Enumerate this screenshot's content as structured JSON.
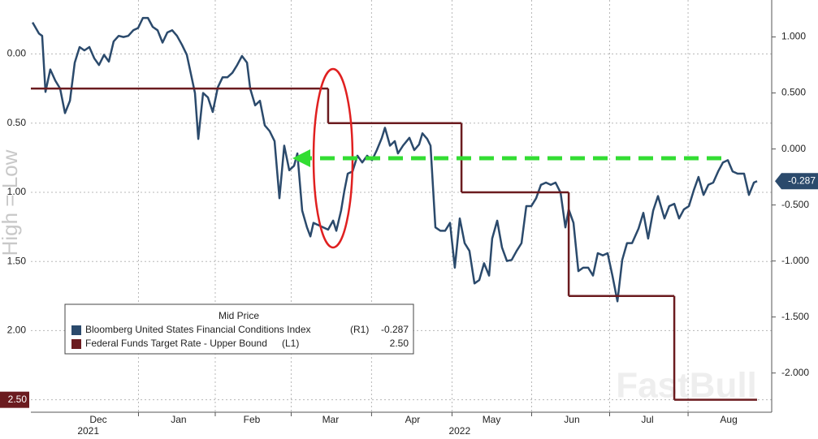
{
  "chart_data": {
    "type": "line",
    "side_label": "High = Low",
    "watermark": "FastBull",
    "legend_title": "Mid Price",
    "xlim": [
      0,
      40
    ],
    "xticks": [
      {
        "value": 3.64,
        "label": "Dec"
      },
      {
        "value": 7.98,
        "label": "Jan"
      },
      {
        "value": 11.93,
        "label": "Feb"
      },
      {
        "value": 16.18,
        "label": "Mar"
      },
      {
        "value": 20.61,
        "label": "Apr"
      },
      {
        "value": 24.87,
        "label": "May"
      },
      {
        "value": 29.21,
        "label": "Jun"
      },
      {
        "value": 33.29,
        "label": "Jul"
      },
      {
        "value": 37.68,
        "label": "Aug"
      }
    ],
    "x_year_labels": [
      {
        "value": 3.1,
        "label": "2021"
      },
      {
        "value": 23.15,
        "label": "2022"
      }
    ],
    "ylim": [
      -0.39,
      2.59
    ],
    "y_inverted": true,
    "yticks": [
      {
        "value": 0,
        "label": "0.00"
      },
      {
        "value": 0.5,
        "label": "0.50"
      },
      {
        "value": 1,
        "label": "1.00"
      },
      {
        "value": 1.5,
        "label": "1.50"
      },
      {
        "value": 2,
        "label": "2.00"
      },
      {
        "value": 2.5,
        "label": "2.50"
      }
    ],
    "y2lim": [
      -2.35,
      1.33
    ],
    "y2ticks": [
      {
        "value": 1,
        "label": "1.000"
      },
      {
        "value": 0.5,
        "label": "0.500"
      },
      {
        "value": 0,
        "label": "0.000"
      },
      {
        "value": -0.5,
        "label": "-0.500"
      },
      {
        "value": -1,
        "label": "-1.000"
      },
      {
        "value": -1.5,
        "label": "-1.500"
      },
      {
        "value": -2,
        "label": "-2.000"
      }
    ],
    "grid": true,
    "legend": "lower-left",
    "series": [
      {
        "name": "Bloomberg United States Financial Conditions Index",
        "axis": "y2",
        "axis_tag": "(R1)",
        "color": "#2b4a6c",
        "last_value_label": "-0.287",
        "x": [
          0.09,
          0.44,
          0.61,
          0.79,
          1.05,
          1.32,
          1.58,
          1.84,
          2.11,
          2.37,
          2.63,
          2.89,
          3.16,
          3.42,
          3.68,
          3.95,
          4.21,
          4.47,
          4.74,
          5.0,
          5.26,
          5.53,
          5.79,
          6.05,
          6.32,
          6.58,
          6.84,
          7.11,
          7.37,
          7.63,
          7.89,
          8.16,
          8.42,
          8.68,
          8.86,
          9.04,
          9.3,
          9.56,
          9.82,
          10.09,
          10.35,
          10.61,
          10.88,
          11.14,
          11.4,
          11.67,
          11.84,
          12.11,
          12.37,
          12.63,
          12.89,
          13.16,
          13.42,
          13.68,
          13.95,
          14.21,
          14.39,
          14.65,
          14.91,
          15.09,
          15.26,
          15.53,
          15.79,
          16.05,
          16.32,
          16.49,
          16.75,
          16.93,
          17.11,
          17.37,
          17.63,
          17.89,
          18.16,
          18.42,
          18.68,
          18.95,
          19.12,
          19.39,
          19.65,
          19.82,
          20.09,
          20.44,
          20.7,
          20.96,
          21.14,
          21.4,
          21.58,
          21.84,
          22.11,
          22.37,
          22.63,
          22.89,
          23.16,
          23.42,
          23.68,
          23.95,
          24.21,
          24.47,
          24.74,
          24.91,
          25.18,
          25.44,
          25.7,
          25.96,
          26.23,
          26.49,
          26.75,
          27.02,
          27.28,
          27.54,
          27.81,
          28.07,
          28.33,
          28.6,
          28.86,
          29.04,
          29.3,
          29.56,
          29.82,
          30.09,
          30.35,
          30.61,
          30.88,
          31.14,
          31.4,
          31.67,
          31.93,
          32.19,
          32.46,
          32.81,
          33.07,
          33.33,
          33.6,
          33.86,
          34.21,
          34.47,
          34.74,
          35.0,
          35.26,
          35.53,
          35.79,
          36.05,
          36.32,
          36.58,
          36.84,
          37.11,
          37.37,
          37.63,
          37.89,
          38.16,
          38.51,
          38.77,
          39.04,
          39.21
        ],
        "values": [
          1.13,
          1.03,
          1.01,
          0.51,
          0.71,
          0.61,
          0.54,
          0.32,
          0.43,
          0.77,
          0.91,
          0.88,
          0.91,
          0.81,
          0.75,
          0.84,
          0.78,
          0.96,
          1.01,
          1.0,
          1.01,
          1.06,
          1.08,
          1.17,
          1.17,
          1.09,
          1.06,
          0.95,
          1.04,
          1.06,
          1.01,
          0.93,
          0.84,
          0.64,
          0.5,
          0.09,
          0.5,
          0.46,
          0.33,
          0.55,
          0.64,
          0.64,
          0.68,
          0.75,
          0.83,
          0.77,
          0.54,
          0.39,
          0.43,
          0.21,
          0.16,
          0.07,
          -0.44,
          0.03,
          -0.19,
          -0.15,
          -0.04,
          -0.55,
          -0.7,
          -0.78,
          -0.66,
          -0.68,
          -0.7,
          -0.72,
          -0.64,
          -0.73,
          -0.55,
          -0.37,
          -0.22,
          -0.2,
          -0.06,
          -0.12,
          -0.06,
          -0.1,
          -0.01,
          0.1,
          0.19,
          0.03,
          0.07,
          -0.04,
          0.03,
          0.1,
          -0.01,
          0.04,
          0.14,
          0.09,
          0.03,
          -0.7,
          -0.73,
          -0.73,
          -0.66,
          -1.06,
          -0.62,
          -0.84,
          -0.91,
          -1.2,
          -1.17,
          -1.02,
          -1.13,
          -0.8,
          -0.64,
          -0.88,
          -1.0,
          -0.99,
          -0.91,
          -0.84,
          -0.51,
          -0.51,
          -0.44,
          -0.32,
          -0.3,
          -0.32,
          -0.3,
          -0.39,
          -0.7,
          -0.54,
          -0.66,
          -1.09,
          -1.06,
          -1.06,
          -1.13,
          -0.93,
          -0.95,
          -0.93,
          -1.13,
          -1.36,
          -0.99,
          -0.84,
          -0.84,
          -0.71,
          -0.57,
          -0.8,
          -0.55,
          -0.42,
          -0.62,
          -0.51,
          -0.49,
          -0.62,
          -0.54,
          -0.51,
          -0.37,
          -0.25,
          -0.41,
          -0.32,
          -0.3,
          -0.2,
          -0.12,
          -0.1,
          -0.2,
          -0.22,
          -0.22,
          -0.41,
          -0.3,
          -0.287
        ]
      },
      {
        "name": "Federal Funds Target Rate - Upper Bound",
        "axis": "y",
        "axis_tag": "(L1)",
        "color": "#6b1b1f",
        "last_value_label": "2.50",
        "step": "post",
        "x": [
          0,
          16.05,
          23.25,
          29.04,
          34.74,
          39.21
        ],
        "values": [
          0.25,
          0.5,
          1.0,
          1.75,
          2.5,
          2.5
        ]
      }
    ]
  }
}
